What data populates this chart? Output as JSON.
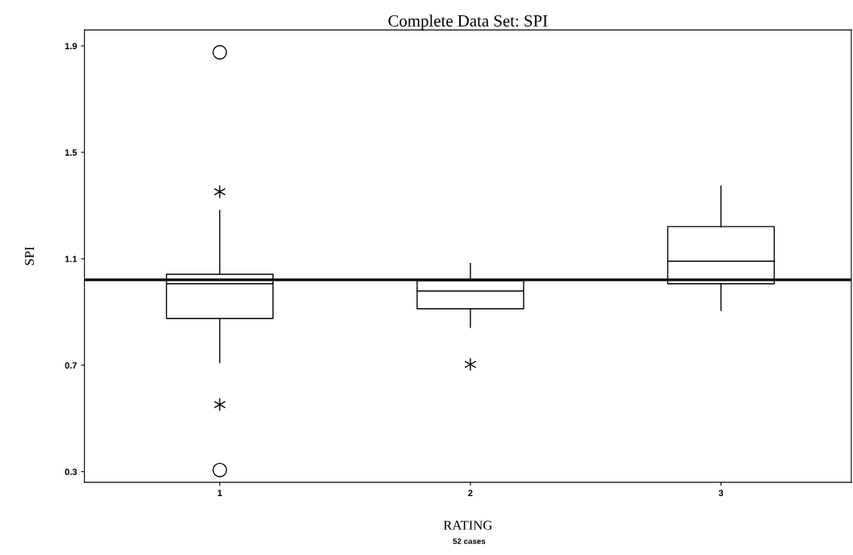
{
  "chart_data": {
    "type": "box",
    "title": "Complete Data Set: SPI",
    "xlabel": "RATING",
    "ylabel": "SPI",
    "categories": [
      "1",
      "2",
      "3"
    ],
    "boxes": [
      {
        "low": 0.71,
        "q1": 0.876,
        "median": 1.006,
        "q3": 1.042,
        "high": 1.282,
        "outliers": [
          1.876,
          0.306
        ]
      },
      {
        "low": 0.842,
        "q1": 0.912,
        "median": 0.979,
        "q3": 1.018,
        "high": 1.082
      },
      {
        "low": 0.906,
        "q1": 1.006,
        "median": 1.091,
        "q3": 1.221,
        "high": 1.373
      }
    ],
    "series": [
      {
        "type": "scatter",
        "marker": "cross",
        "color": "#000000",
        "x": [
          "1",
          "1",
          "2"
        ],
        "values": [
          1.352,
          0.552,
          0.703
        ]
      }
    ],
    "ylim": [
      0.26,
      1.96
    ],
    "yticks": [
      0.3,
      0.7,
      1.1,
      1.5,
      1.9
    ],
    "ref_lines": [
      {
        "axis": "y",
        "value": 1.021,
        "color": "#000000"
      }
    ],
    "annotations": [
      "52 cases"
    ],
    "grid": false,
    "legend": false
  }
}
